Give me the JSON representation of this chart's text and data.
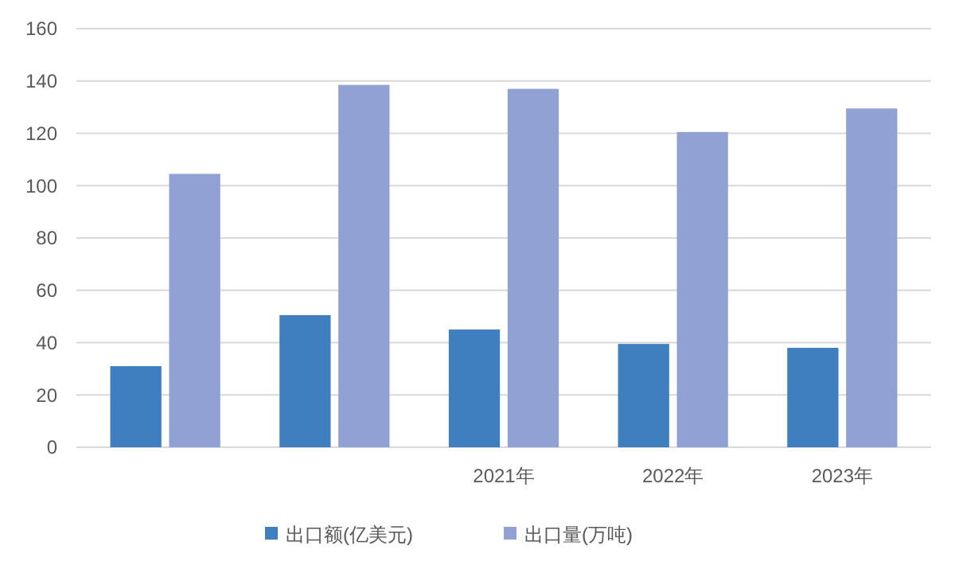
{
  "chart_data": {
    "type": "bar",
    "categories": [
      null,
      null,
      "2021年",
      "2022年",
      "2023年"
    ],
    "series": [
      {
        "name": "出口额(亿美元)",
        "color": "#3f7fbf",
        "values": [
          31,
          50.5,
          45,
          39.5,
          38
        ]
      },
      {
        "name": "出口量(万吨)",
        "color": "#8fa2d3",
        "values": [
          104.5,
          138.5,
          137,
          120.5,
          129.5
        ]
      }
    ],
    "ylim": [
      0,
      160
    ],
    "yticks": [
      0,
      20,
      40,
      60,
      80,
      100,
      120,
      140,
      160
    ],
    "grid": "y",
    "legend": "bottom"
  }
}
